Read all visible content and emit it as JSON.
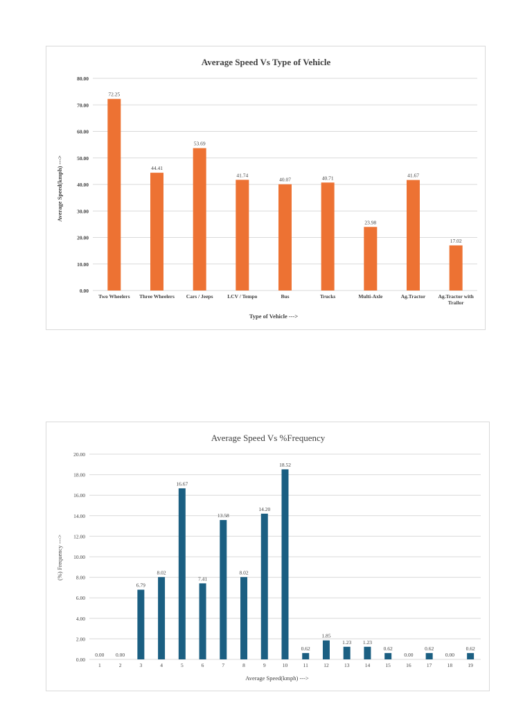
{
  "chart_data": [
    {
      "type": "bar",
      "title": "Average Speed Vs Type of Vehicle",
      "xlabel": "Type of Vehicle   --->",
      "ylabel": "Average Speed(kmph)  --->",
      "categories": [
        "Two Wheelers",
        "Three Wheelers",
        "Cars / Jeeps",
        "LCV / Tempo",
        "Bus",
        "Trucks",
        "Multi-Axle",
        "Ag.Tractor",
        "Ag.Tractor with Trailor"
      ],
      "values": [
        72.25,
        44.41,
        53.69,
        41.74,
        40.07,
        40.71,
        23.98,
        41.67,
        17.02
      ],
      "data_labels": [
        "72.25",
        "44.41",
        "53.69",
        "41.74",
        "40.07",
        "40.71",
        "23.98",
        "41.67",
        "17.02"
      ],
      "yticks": [
        "0.00",
        "10.00",
        "20.00",
        "30.00",
        "40.00",
        "50.00",
        "60.00",
        "70.00",
        "80.00"
      ],
      "ylim": [
        0,
        80
      ],
      "color": "#ED7233",
      "grid": true,
      "legend": "none"
    },
    {
      "type": "bar",
      "title": "Average Speed Vs %Frequency",
      "xlabel": "Average Speed(kmph)   --->",
      "ylabel": "(%) Frequency   --->",
      "categories": [
        "1",
        "2",
        "3",
        "4",
        "5",
        "6",
        "7",
        "8",
        "9",
        "10",
        "11",
        "12",
        "13",
        "14",
        "15",
        "16",
        "17",
        "18",
        "19"
      ],
      "values": [
        0.0,
        0.0,
        6.79,
        8.02,
        16.67,
        7.41,
        13.58,
        8.02,
        14.2,
        18.52,
        0.62,
        1.85,
        1.23,
        1.23,
        0.62,
        0.0,
        0.62,
        0.0,
        0.62
      ],
      "data_labels": [
        "0.00",
        "0.00",
        "6.79",
        "8.02",
        "16.67",
        "7.41",
        "13.58",
        "8.02",
        "14.20",
        "18.52",
        "0.62",
        "1.85",
        "1.23",
        "1.23",
        "0.62",
        "0.00",
        "0.62",
        "0.00",
        "0.62"
      ],
      "yticks": [
        "0.00",
        "2.00",
        "4.00",
        "6.00",
        "8.00",
        "10.00",
        "12.00",
        "14.00",
        "16.00",
        "18.00",
        "20.00"
      ],
      "ylim": [
        0,
        20
      ],
      "color": "#1B5F82",
      "grid": true,
      "legend": "none"
    }
  ]
}
